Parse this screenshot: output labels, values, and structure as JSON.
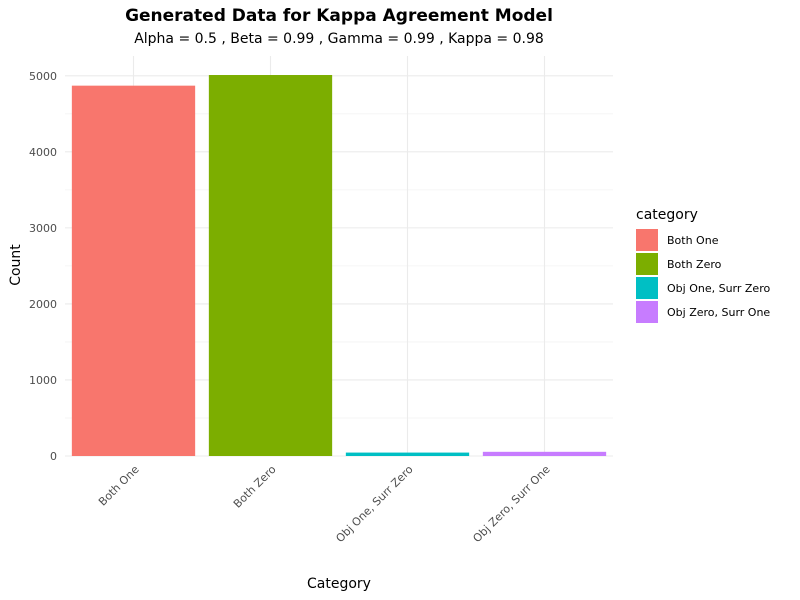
{
  "chart_data": {
    "type": "bar",
    "title": "Generated Data for Kappa Agreement Model",
    "subtitle": "Alpha = 0.5 , Beta = 0.99 , Gamma = 0.99 , Kappa = 0.98",
    "xlabel": "Category",
    "ylabel": "Count",
    "categories": [
      "Both One",
      "Both Zero",
      "Obj One, Surr Zero",
      "Obj Zero, Surr One"
    ],
    "values": [
      4870,
      5010,
      45,
      55
    ],
    "colors": [
      "#F8766D",
      "#7CAE00",
      "#00BFC4",
      "#C77CFF"
    ],
    "ylim": [
      0,
      5260
    ],
    "yticks": [
      0,
      1000,
      2000,
      3000,
      4000,
      5000
    ],
    "yticks_labels": [
      "0",
      "1000",
      "2000",
      "3000",
      "4000",
      "5000"
    ],
    "grid": true,
    "legend": {
      "title": "category",
      "position": "right",
      "items": [
        "Both One",
        "Both Zero",
        "Obj One, Surr Zero",
        "Obj Zero, Surr One"
      ]
    }
  }
}
